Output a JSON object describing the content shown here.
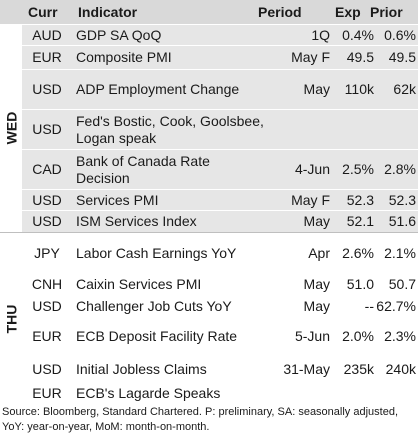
{
  "header": {
    "curr": "Curr",
    "indicator": "Indicator",
    "period": "Period",
    "exp": "Exp",
    "prior": "Prior"
  },
  "days": {
    "wed": "WED",
    "thu": "THU"
  },
  "rows": [
    {
      "curr": "AUD",
      "indicator": "GDP SA QoQ",
      "period": "1Q",
      "exp": "0.4%",
      "prior": "0.6%"
    },
    {
      "curr": "EUR",
      "indicator": "Composite PMI",
      "period": "May F",
      "exp": "49.5",
      "prior": "49.5"
    },
    {
      "curr": "USD",
      "indicator": "ADP Employment Change",
      "period": "May",
      "exp": "110k",
      "prior": "62k"
    },
    {
      "curr": "USD",
      "indicator": "Fed's Bostic, Cook, Goolsbee, Logan speak",
      "period": "",
      "exp": "",
      "prior": ""
    },
    {
      "curr": "CAD",
      "indicator": "Bank of Canada Rate Decision",
      "period": "4-Jun",
      "exp": "2.5%",
      "prior": "2.8%"
    },
    {
      "curr": "USD",
      "indicator": "Services PMI",
      "period": "May F",
      "exp": "52.3",
      "prior": "52.3"
    },
    {
      "curr": "USD",
      "indicator": "ISM Services Index",
      "period": "May",
      "exp": "52.1",
      "prior": "51.6"
    },
    {
      "curr": "JPY",
      "indicator": "Labor Cash Earnings YoY",
      "period": "Apr",
      "exp": "2.6%",
      "prior": "2.1%"
    },
    {
      "curr": "CNH",
      "indicator": "Caixin Services PMI",
      "period": "May",
      "exp": "51.0",
      "prior": "50.7"
    },
    {
      "curr": "USD",
      "indicator": "Challenger Job Cuts YoY",
      "period": "May",
      "exp": "--",
      "prior": "62.7%"
    },
    {
      "curr": "EUR",
      "indicator": "ECB Deposit Facility Rate",
      "period": "5-Jun",
      "exp": "2.0%",
      "prior": "2.3%"
    },
    {
      "curr": "USD",
      "indicator": "Initial Jobless Claims",
      "period": "31-May",
      "exp": "235k",
      "prior": "240k"
    },
    {
      "curr": "EUR",
      "indicator": "ECB's Lagarde Speaks",
      "period": "",
      "exp": "",
      "prior": ""
    }
  ],
  "footnote": "Source: Bloomberg, Standard Chartered. P: preliminary, SA: seasonally adjusted, YoY: year-on-year, MoM: month-on-month."
}
